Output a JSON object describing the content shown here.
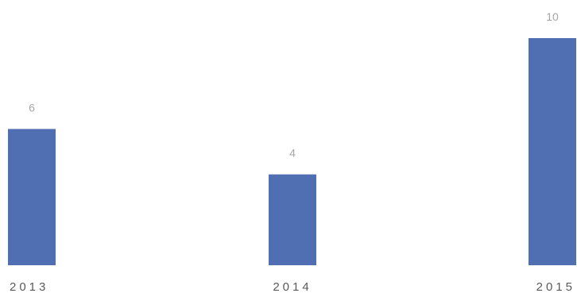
{
  "chart_data": {
    "type": "bar",
    "title": "",
    "xlabel": "",
    "ylabel": "",
    "categories": [
      "2013",
      "2014",
      "2015"
    ],
    "values": [
      6,
      4,
      10
    ],
    "ylim": [
      0,
      10
    ],
    "grid": false,
    "legend": "none",
    "data_labels": true,
    "bar_color": "#4f6fb2",
    "label_color": "#a6a6a6",
    "tick_color": "#595959"
  }
}
